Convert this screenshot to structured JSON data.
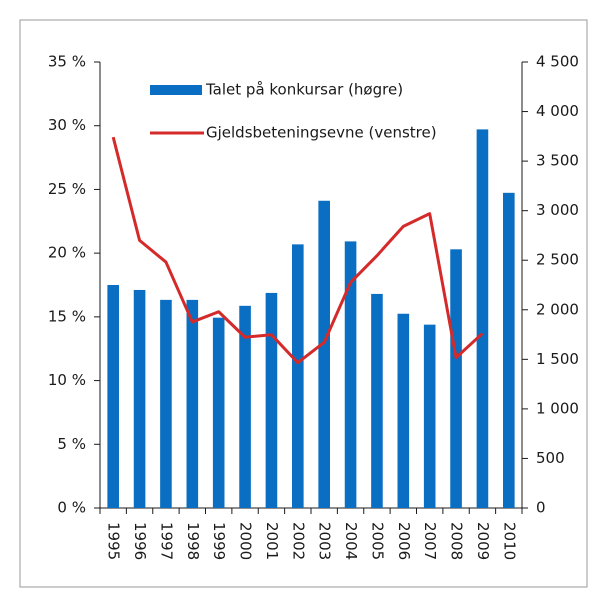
{
  "chart_data": {
    "type": "bar",
    "categories": [
      "1995",
      "1996",
      "1997",
      "1998",
      "1999",
      "2000",
      "2001",
      "2002",
      "2003",
      "2004",
      "2005",
      "2006",
      "2007",
      "2008",
      "2009",
      "2010"
    ],
    "series": [
      {
        "name": "Talet på konkursar (høgre)",
        "type": "bar",
        "axis": "y2",
        "color": "#0a6fc2",
        "values": [
          2250,
          2200,
          2100,
          2100,
          1920,
          2040,
          2170,
          2660,
          3100,
          2690,
          2160,
          1960,
          1850,
          2610,
          3820,
          3180
        ]
      },
      {
        "name": "Gjeldsbeteningsevne (venstre)",
        "type": "line",
        "axis": "y",
        "color": "#d42a2a",
        "values": [
          29.1,
          21.0,
          19.3,
          14.6,
          15.4,
          13.4,
          13.6,
          11.4,
          13.0,
          17.7,
          19.8,
          22.1,
          23.1,
          11.8,
          13.7,
          null
        ]
      }
    ],
    "ylim": [
      0,
      35
    ],
    "yticks": [
      {
        "value": 0,
        "label": "0 %"
      },
      {
        "value": 5,
        "label": "5 %"
      },
      {
        "value": 10,
        "label": "10 %"
      },
      {
        "value": 15,
        "label": "15 %"
      },
      {
        "value": 20,
        "label": "20 %"
      },
      {
        "value": 25,
        "label": "25 %"
      },
      {
        "value": 30,
        "label": "30 %"
      },
      {
        "value": 35,
        "label": "35 %"
      }
    ],
    "y2lim": [
      0,
      4500
    ],
    "y2ticks": [
      0,
      500,
      {
        "value": 1000,
        "label": "1 000"
      },
      {
        "value": 1500,
        "label": "1 500"
      },
      {
        "value": 2000,
        "label": "2 000"
      },
      {
        "value": 2500,
        "label": "2 500"
      },
      {
        "value": 3000,
        "label": "3 000"
      },
      {
        "value": 3500,
        "label": "3 500"
      },
      {
        "value": 4000,
        "label": "4 000"
      },
      {
        "value": 4500,
        "label": "4 500"
      }
    ],
    "legend": "top-left",
    "grid": false
  }
}
